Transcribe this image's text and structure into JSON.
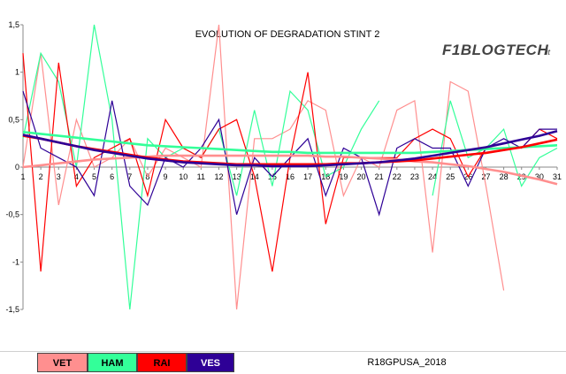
{
  "chart_data": {
    "type": "line",
    "title": "EVOLUTION OF DEGRADATION STINT 2",
    "x": [
      1,
      2,
      3,
      4,
      5,
      6,
      7,
      8,
      9,
      10,
      11,
      12,
      13,
      14,
      15,
      16,
      17,
      18,
      19,
      20,
      21,
      22,
      23,
      24,
      25,
      26,
      27,
      28,
      29,
      30,
      31
    ],
    "ylim": [
      -1.5,
      1.5
    ],
    "yticks": [
      "-1,5",
      "-1",
      "-0,5",
      "0",
      "0,5",
      "1",
      "1,5"
    ],
    "grid": false,
    "legend_position": "bottom",
    "series": [
      {
        "name": "VET",
        "color": "#ff8f8f",
        "values": [
          0.0,
          1.2,
          -0.4,
          0.5,
          0.0,
          0.1,
          0.3,
          -0.1,
          0.2,
          0.1,
          0.0,
          1.5,
          -1.5,
          0.3,
          0.3,
          0.4,
          0.7,
          0.6,
          -0.3,
          0.1,
          0.0,
          0.6,
          0.7,
          -0.9,
          0.9,
          0.8,
          -0.2,
          -1.3,
          null,
          null,
          null
        ]
      },
      {
        "name": "HAM",
        "color": "#33ff99",
        "values": [
          0.3,
          1.2,
          0.9,
          0.0,
          1.5,
          0.5,
          -1.5,
          0.3,
          0.1,
          0.2,
          0.1,
          0.4,
          -0.3,
          0.6,
          -0.2,
          0.8,
          0.6,
          -0.1,
          0.0,
          0.4,
          0.7,
          null,
          null,
          -0.3,
          0.7,
          0.1,
          0.2,
          0.4,
          -0.2,
          0.1,
          0.2
        ]
      },
      {
        "name": "RAI",
        "color": "#ff0000",
        "values": [
          1.2,
          -1.1,
          1.1,
          -0.2,
          0.1,
          0.2,
          0.3,
          -0.3,
          0.5,
          0.2,
          0.1,
          0.4,
          0.5,
          -0.1,
          -1.1,
          0.1,
          1.0,
          -0.6,
          0.1,
          0.1,
          0.1,
          0.1,
          0.3,
          0.4,
          0.3,
          -0.1,
          0.2,
          0.2,
          0.2,
          0.4,
          0.3
        ]
      },
      {
        "name": "VES",
        "color": "#2e0096",
        "values": [
          0.8,
          0.2,
          0.1,
          0.0,
          -0.3,
          0.7,
          -0.2,
          -0.4,
          0.1,
          0.0,
          0.2,
          0.5,
          -0.5,
          0.1,
          -0.1,
          0.1,
          0.3,
          -0.3,
          0.2,
          0.1,
          -0.5,
          0.2,
          0.3,
          0.2,
          0.2,
          -0.2,
          0.2,
          0.3,
          0.2,
          0.4,
          0.4
        ]
      }
    ],
    "trendlines": [
      {
        "name": "VET",
        "color": "#ff8f8f",
        "values": [
          0.0,
          0.02,
          0.04,
          0.06,
          0.08,
          0.09,
          0.1,
          0.11,
          0.12,
          0.12,
          0.12,
          0.12,
          0.12,
          0.12,
          0.12,
          0.12,
          0.12,
          0.11,
          0.11,
          0.1,
          0.09,
          0.08,
          0.06,
          0.05,
          0.03,
          0.01,
          -0.02,
          -0.05,
          -0.09,
          -0.13,
          -0.18
        ]
      },
      {
        "name": "HAM",
        "color": "#33ff99",
        "values": [
          0.37,
          0.35,
          0.33,
          0.31,
          0.29,
          0.27,
          0.25,
          0.23,
          0.22,
          0.21,
          0.2,
          0.19,
          0.18,
          0.17,
          0.16,
          0.16,
          0.15,
          0.15,
          0.15,
          0.15,
          0.15,
          0.15,
          0.15,
          0.16,
          0.17,
          0.18,
          0.19,
          0.2,
          0.21,
          0.22,
          0.23
        ]
      },
      {
        "name": "RAI",
        "color": "#ff0000",
        "values": [
          0.33,
          0.3,
          0.26,
          0.22,
          0.19,
          0.16,
          0.13,
          0.1,
          0.08,
          0.06,
          0.05,
          0.04,
          0.03,
          0.03,
          0.03,
          0.03,
          0.03,
          0.03,
          0.04,
          0.04,
          0.05,
          0.06,
          0.07,
          0.09,
          0.11,
          0.13,
          0.15,
          0.18,
          0.21,
          0.25,
          0.29
        ]
      },
      {
        "name": "VES",
        "color": "#2e0096",
        "values": [
          0.34,
          0.3,
          0.26,
          0.22,
          0.18,
          0.15,
          0.12,
          0.09,
          0.07,
          0.05,
          0.04,
          0.03,
          0.02,
          0.02,
          0.01,
          0.01,
          0.01,
          0.02,
          0.03,
          0.04,
          0.05,
          0.07,
          0.09,
          0.12,
          0.15,
          0.18,
          0.21,
          0.25,
          0.29,
          0.33,
          0.38
        ]
      }
    ]
  },
  "logo": {
    "text": "F1BLOGTECH",
    "suffix": ".it"
  },
  "legend": {
    "items": [
      {
        "label": "VET",
        "bg": "#ff8f8f",
        "fg": "#000000"
      },
      {
        "label": "HAM",
        "bg": "#33ff99",
        "fg": "#000000"
      },
      {
        "label": "RAI",
        "bg": "#ff0000",
        "fg": "#000000"
      },
      {
        "label": "VES",
        "bg": "#2e0096",
        "fg": "#ffffff"
      }
    ],
    "source_label": "R18GPUSA_2018"
  }
}
